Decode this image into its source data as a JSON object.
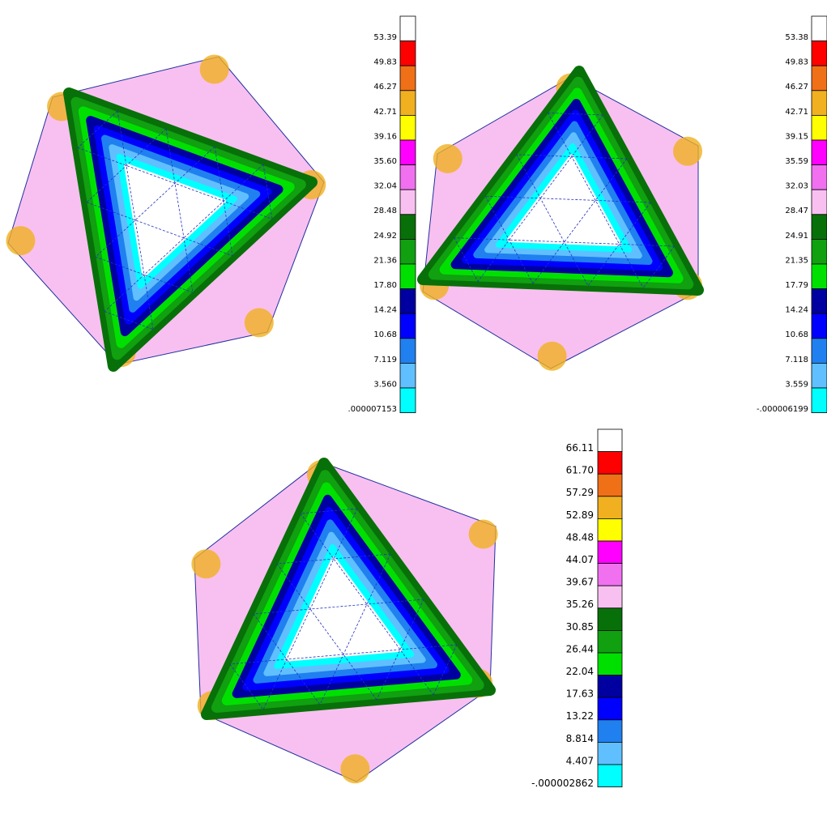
{
  "panels": [
    {
      "legend": [
        "53.39",
        "49.83",
        "46.27",
        "42.71",
        "39.16",
        "35.60",
        "32.04",
        "28.48",
        "24.92",
        "21.36",
        "17.80",
        "14.24",
        "10.68",
        "7.119",
        "3.560",
        ".000007153"
      ]
    },
    {
      "legend": [
        "53.38",
        "49.83",
        "46.27",
        "42.71",
        "39.15",
        "35.59",
        "32.03",
        "28.47",
        "24.91",
        "21.35",
        "17.79",
        "14.24",
        "10.68",
        "7.118",
        "3.559",
        "-.000006199"
      ]
    },
    {
      "legend": [
        "66.11",
        "61.70",
        "57.29",
        "52.89",
        "48.48",
        "44.07",
        "39.67",
        "35.26",
        "30.85",
        "26.44",
        "22.04",
        "17.63",
        "13.22",
        "8.814",
        "4.407",
        "-.000002862"
      ]
    }
  ]
}
